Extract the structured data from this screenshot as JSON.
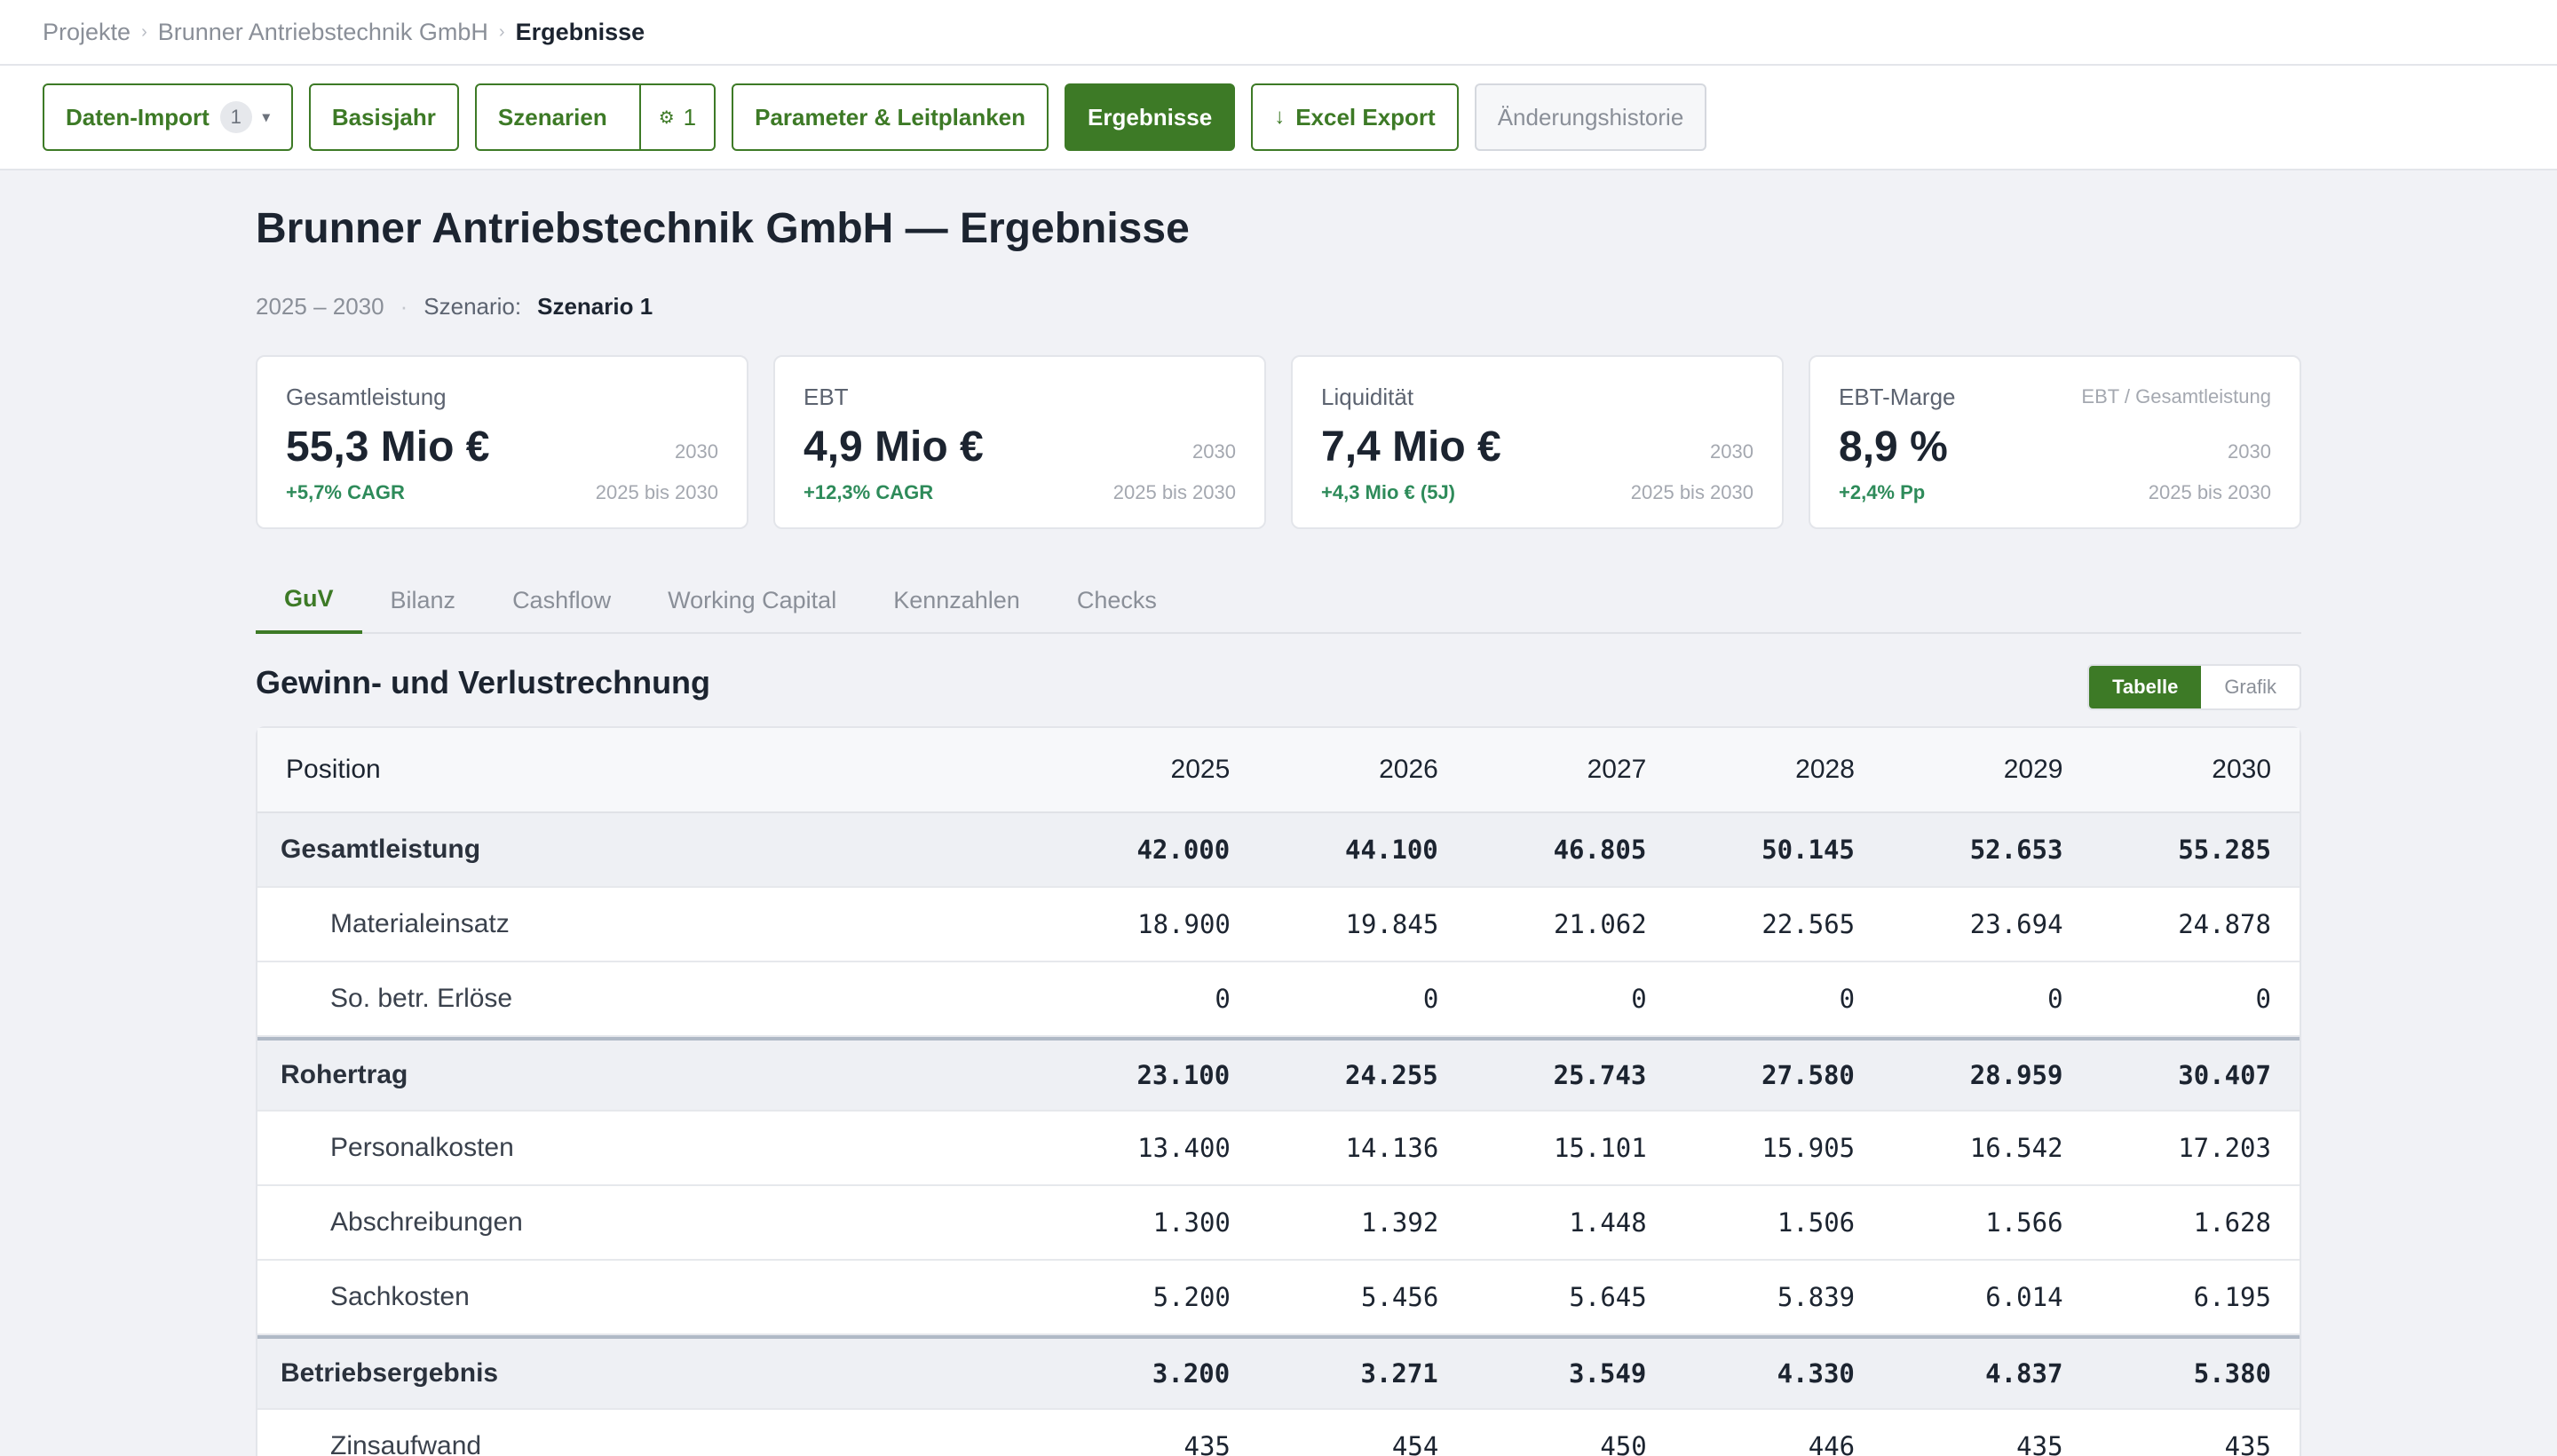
{
  "breadcrumb": [
    "Projekte",
    "Brunner Antriebstechnik GmbH",
    "Ergebnisse"
  ],
  "toolbar": {
    "import_label": "Daten-Import",
    "import_badge": "1",
    "basisjahr_label": "Basisjahr",
    "szenarien_label": "Szenarien",
    "szenarien_count": "1",
    "parameter_label": "Parameter & Leitplanken",
    "ergebnisse_label": "Ergebnisse",
    "export_label": "Excel Export",
    "history_label": "Änderungshistorie"
  },
  "page": {
    "title": "Brunner Antriebstechnik GmbH — Ergebnisse",
    "years": "2025 – 2030",
    "scenario_label": "Szenario:",
    "scenario_value": "Szenario 1"
  },
  "kpis": [
    {
      "label": "Gesamtleistung",
      "note": "",
      "value": "55,3 Mio €",
      "year": "2030",
      "delta": "+5,7% CAGR",
      "range": "2025 bis 2030"
    },
    {
      "label": "EBT",
      "note": "",
      "value": "4,9 Mio €",
      "year": "2030",
      "delta": "+12,3% CAGR",
      "range": "2025 bis 2030"
    },
    {
      "label": "Liquidität",
      "note": "",
      "value": "7,4 Mio €",
      "year": "2030",
      "delta": "+4,3 Mio € (5J)",
      "range": "2025 bis 2030"
    },
    {
      "label": "EBT-Marge",
      "note": "EBT / Gesamtleistung",
      "value": "8,9 %",
      "year": "2030",
      "delta": "+2,4% Pp",
      "range": "2025 bis 2030"
    }
  ],
  "tabs": [
    "GuV",
    "Bilanz",
    "Cashflow",
    "Working Capital",
    "Kennzahlen",
    "Checks"
  ],
  "section": {
    "title": "Gewinn- und Verlustrechnung",
    "toggle_table": "Tabelle",
    "toggle_chart": "Grafik"
  },
  "table": {
    "headers": [
      "Position",
      "2025",
      "2026",
      "2027",
      "2028",
      "2029",
      "2030"
    ],
    "rows": [
      {
        "label": "Gesamtleistung",
        "values": [
          "42.000",
          "44.100",
          "46.805",
          "50.145",
          "52.653",
          "55.285"
        ]
      },
      {
        "label": "Materialeinsatz",
        "values": [
          "18.900",
          "19.845",
          "21.062",
          "22.565",
          "23.694",
          "24.878"
        ]
      },
      {
        "label": "So. betr. Erlöse",
        "values": [
          "0",
          "0",
          "0",
          "0",
          "0",
          "0"
        ]
      },
      {
        "label": "Rohertrag",
        "values": [
          "23.100",
          "24.255",
          "25.743",
          "27.580",
          "28.959",
          "30.407"
        ]
      },
      {
        "label": "Personalkosten",
        "values": [
          "13.400",
          "14.136",
          "15.101",
          "15.905",
          "16.542",
          "17.203"
        ]
      },
      {
        "label": "Abschreibungen",
        "values": [
          "1.300",
          "1.392",
          "1.448",
          "1.506",
          "1.566",
          "1.628"
        ]
      },
      {
        "label": "Sachkosten",
        "values": [
          "5.200",
          "5.456",
          "5.645",
          "5.839",
          "6.014",
          "6.195"
        ]
      },
      {
        "label": "Betriebsergebnis",
        "values": [
          "3.200",
          "3.271",
          "3.549",
          "4.330",
          "4.837",
          "5.380"
        ]
      },
      {
        "label": "Zinsaufwand",
        "values": [
          "435",
          "454",
          "450",
          "446",
          "435",
          "435"
        ]
      }
    ]
  }
}
